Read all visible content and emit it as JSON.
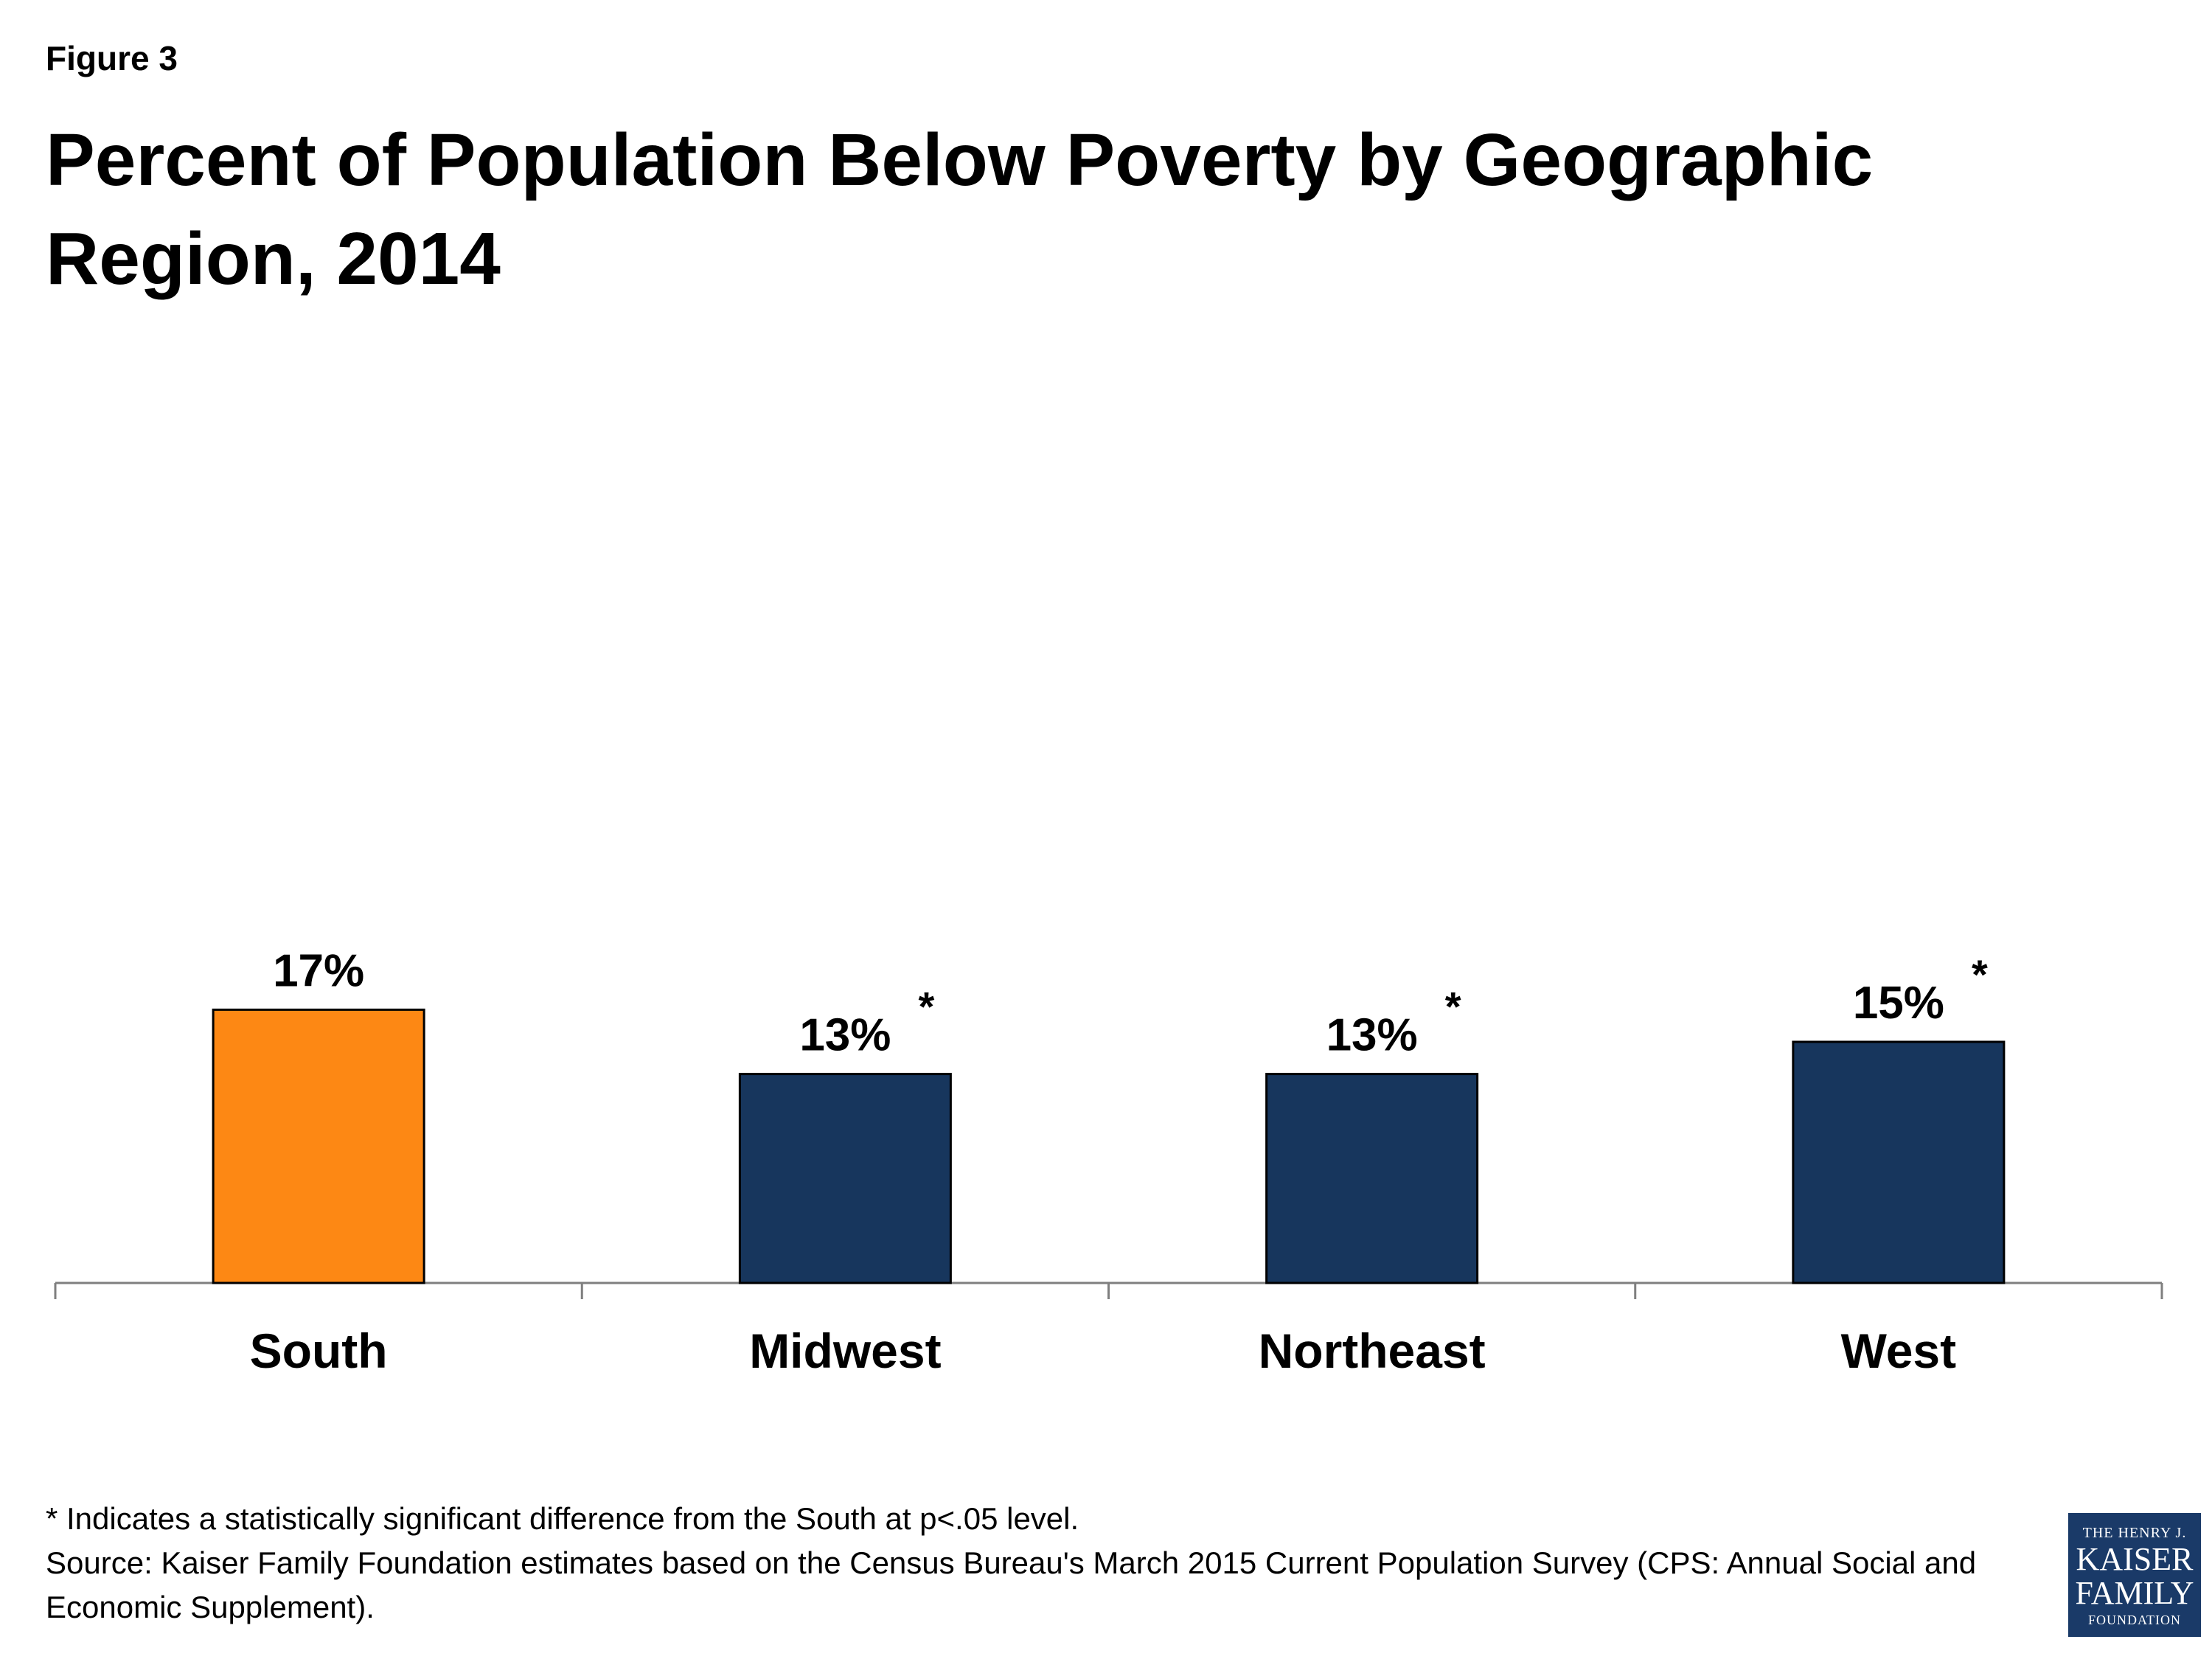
{
  "figure_label": "Figure 3",
  "title": "Percent of Population Below Poverty by Geographic Region, 2014",
  "colors": {
    "highlight": "#fd8814",
    "bar": "#17365d",
    "axis": "#7f7f7f",
    "logo_bg": "#1a3a68"
  },
  "chart_data": {
    "type": "bar",
    "title": "Percent of Population Below Poverty by Geographic Region, 2014",
    "categories": [
      "South",
      "Midwest",
      "Northeast",
      "West"
    ],
    "values": [
      17,
      13,
      13,
      15
    ],
    "data_labels": [
      "17%",
      "13%",
      "13%",
      "15%"
    ],
    "significance_markers": [
      "",
      "*",
      "*",
      "*"
    ],
    "bar_colors": [
      "#fd8814",
      "#17365d",
      "#17365d",
      "#17365d"
    ],
    "xlabel": "",
    "ylabel": "",
    "ylim": [
      0,
      100
    ],
    "grid": false,
    "legend": "none"
  },
  "footnotes": {
    "significance": "* Indicates a statistically significant difference from the South at p<.05 level.",
    "source": "Source: Kaiser Family Foundation estimates based on the Census Bureau's March 2015 Current Population Survey (CPS: Annual Social and Economic Supplement)."
  },
  "logo": {
    "top": "THE HENRY J.",
    "line1": "KAISER",
    "line2": "FAMILY",
    "bottom": "FOUNDATION"
  }
}
